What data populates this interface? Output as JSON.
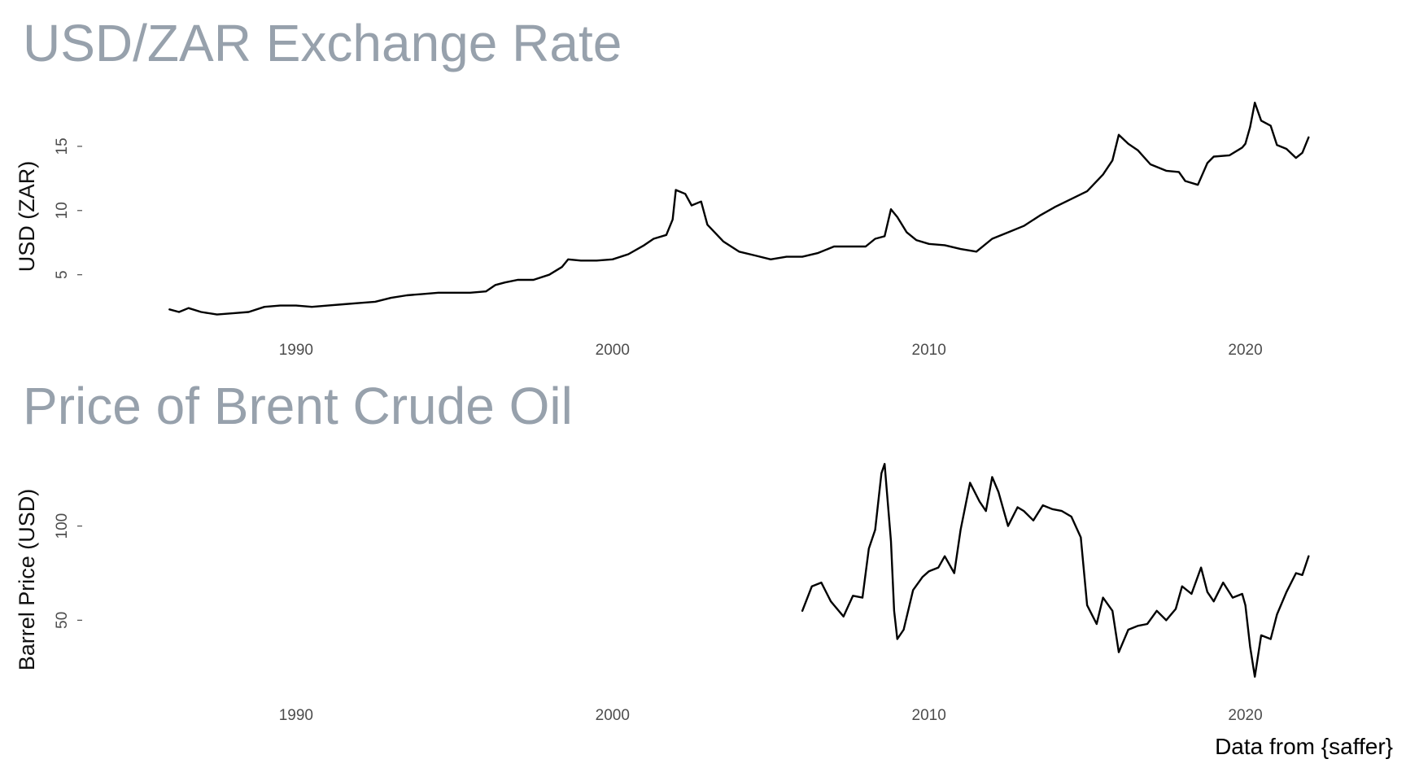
{
  "chart_data": [
    {
      "type": "line",
      "title": "USD/ZAR Exchange Rate",
      "xlabel": "",
      "ylabel": "USD (ZAR)",
      "xlim": [
        1983.6,
        2024.1
      ],
      "ylim": [
        0.8,
        19.3
      ],
      "x_ticks": [
        1990,
        2000,
        2010,
        2020
      ],
      "y_ticks": [
        5,
        10,
        15
      ],
      "grid": false,
      "series": [
        {
          "x": [
            1986.0,
            1986.3,
            1986.6,
            1987.0,
            1987.5,
            1988.0,
            1988.5,
            1989.0,
            1989.5,
            1990.0,
            1990.5,
            1991.0,
            1991.5,
            1992.0,
            1992.5,
            1993.0,
            1993.5,
            1994.0,
            1994.5,
            1995.0,
            1995.5,
            1996.0,
            1996.3,
            1996.6,
            1997.0,
            1997.5,
            1998.0,
            1998.4,
            1998.6,
            1999.0,
            1999.5,
            2000.0,
            2000.5,
            2001.0,
            2001.3,
            2001.7,
            2001.9,
            2002.0,
            2002.3,
            2002.5,
            2002.8,
            2003.0,
            2003.5,
            2004.0,
            2004.5,
            2005.0,
            2005.5,
            2006.0,
            2006.5,
            2007.0,
            2007.5,
            2008.0,
            2008.3,
            2008.6,
            2008.8,
            2009.0,
            2009.3,
            2009.6,
            2010.0,
            2010.5,
            2011.0,
            2011.5,
            2012.0,
            2012.5,
            2013.0,
            2013.5,
            2014.0,
            2014.5,
            2015.0,
            2015.5,
            2015.8,
            2016.0,
            2016.3,
            2016.6,
            2017.0,
            2017.5,
            2017.9,
            2018.1,
            2018.5,
            2018.8,
            2019.0,
            2019.5,
            2019.9,
            2020.0,
            2020.15,
            2020.3,
            2020.5,
            2020.8,
            2021.0,
            2021.3,
            2021.6,
            2021.8,
            2022.0
          ],
          "y": [
            2.3,
            2.1,
            2.4,
            2.1,
            1.9,
            2.0,
            2.1,
            2.5,
            2.6,
            2.6,
            2.5,
            2.6,
            2.7,
            2.8,
            2.9,
            3.2,
            3.4,
            3.5,
            3.6,
            3.6,
            3.6,
            3.7,
            4.2,
            4.4,
            4.6,
            4.6,
            5.0,
            5.6,
            6.2,
            6.1,
            6.1,
            6.2,
            6.6,
            7.3,
            7.8,
            8.1,
            9.3,
            11.6,
            11.3,
            10.4,
            10.7,
            8.9,
            7.6,
            6.8,
            6.5,
            6.2,
            6.4,
            6.4,
            6.7,
            7.2,
            7.2,
            7.2,
            7.8,
            8.0,
            10.1,
            9.5,
            8.3,
            7.7,
            7.4,
            7.3,
            7.0,
            6.8,
            7.8,
            8.3,
            8.8,
            9.6,
            10.3,
            10.9,
            11.5,
            12.8,
            13.9,
            15.9,
            15.2,
            14.7,
            13.6,
            13.1,
            13.0,
            12.3,
            12.0,
            13.7,
            14.2,
            14.3,
            14.9,
            15.2,
            16.5,
            18.4,
            17.0,
            16.6,
            15.1,
            14.8,
            14.1,
            14.5,
            15.7
          ]
        }
      ]
    },
    {
      "type": "line",
      "title": "Price of Brent Crude Oil",
      "xlabel": "",
      "ylabel": "Barrel Price (USD)",
      "xlim": [
        1983.6,
        2024.1
      ],
      "ylim": [
        10,
        140
      ],
      "x_ticks": [
        1990,
        2000,
        2010,
        2020
      ],
      "y_ticks": [
        50,
        100
      ],
      "grid": false,
      "series": [
        {
          "x": [
            2006.0,
            2006.3,
            2006.6,
            2006.9,
            2007.0,
            2007.3,
            2007.6,
            2007.9,
            2008.1,
            2008.3,
            2008.5,
            2008.6,
            2008.8,
            2008.9,
            2009.0,
            2009.2,
            2009.5,
            2009.8,
            2010.0,
            2010.3,
            2010.5,
            2010.8,
            2011.0,
            2011.3,
            2011.6,
            2011.8,
            2012.0,
            2012.2,
            2012.5,
            2012.8,
            2013.0,
            2013.3,
            2013.6,
            2013.9,
            2014.2,
            2014.5,
            2014.8,
            2015.0,
            2015.3,
            2015.5,
            2015.8,
            2016.0,
            2016.3,
            2016.6,
            2016.9,
            2017.2,
            2017.5,
            2017.8,
            2018.0,
            2018.3,
            2018.6,
            2018.8,
            2019.0,
            2019.3,
            2019.6,
            2019.9,
            2020.0,
            2020.15,
            2020.3,
            2020.5,
            2020.8,
            2021.0,
            2021.3,
            2021.6,
            2021.8,
            2022.0
          ],
          "y": [
            55,
            68,
            70,
            60,
            58,
            52,
            63,
            62,
            88,
            98,
            128,
            133,
            92,
            55,
            40,
            45,
            66,
            73,
            76,
            78,
            84,
            75,
            98,
            123,
            113,
            108,
            126,
            118,
            100,
            110,
            108,
            103,
            111,
            109,
            108,
            105,
            94,
            58,
            48,
            62,
            55,
            33,
            45,
            47,
            48,
            55,
            50,
            56,
            68,
            64,
            78,
            65,
            60,
            70,
            62,
            64,
            58,
            36,
            20,
            42,
            40,
            53,
            65,
            75,
            74,
            84
          ]
        }
      ]
    }
  ],
  "caption": "Data from {saffer}"
}
